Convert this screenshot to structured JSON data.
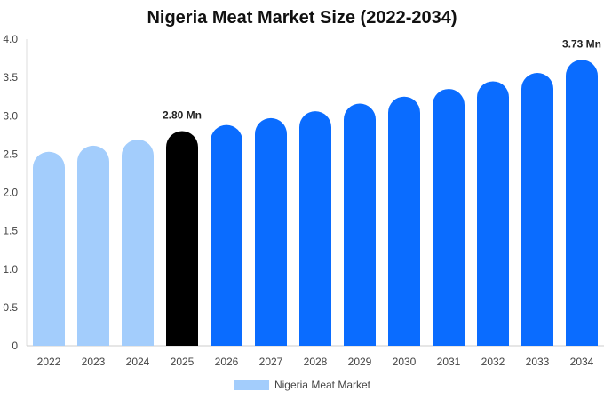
{
  "chart_data": {
    "type": "bar",
    "title": "Nigeria Meat Market Size (2022-2034)",
    "xlabel": "",
    "ylabel": "",
    "categories": [
      "2022",
      "2023",
      "2024",
      "2025",
      "2026",
      "2027",
      "2028",
      "2029",
      "2030",
      "2031",
      "2032",
      "2033",
      "2034"
    ],
    "series": [
      {
        "name": "Nigeria Meat Market",
        "values": [
          2.53,
          2.61,
          2.69,
          2.8,
          2.88,
          2.97,
          3.06,
          3.16,
          3.25,
          3.35,
          3.45,
          3.56,
          3.73
        ]
      }
    ],
    "ylim": [
      0,
      4.0
    ],
    "yticks": [
      "0",
      "0.5",
      "1.0",
      "1.5",
      "2.0",
      "2.5",
      "3.0",
      "3.5",
      "4.0"
    ],
    "data_labels": [
      {
        "category": "2025",
        "text": "2.80 Mn"
      },
      {
        "category": "2034",
        "text": "3.73 Mn"
      }
    ],
    "legend_position": "bottom",
    "grid": false,
    "colors": {
      "historical": "#a3cdfc",
      "current": "#000000",
      "forecast": "#0a6cff",
      "legend": "#a3cdfc"
    }
  }
}
